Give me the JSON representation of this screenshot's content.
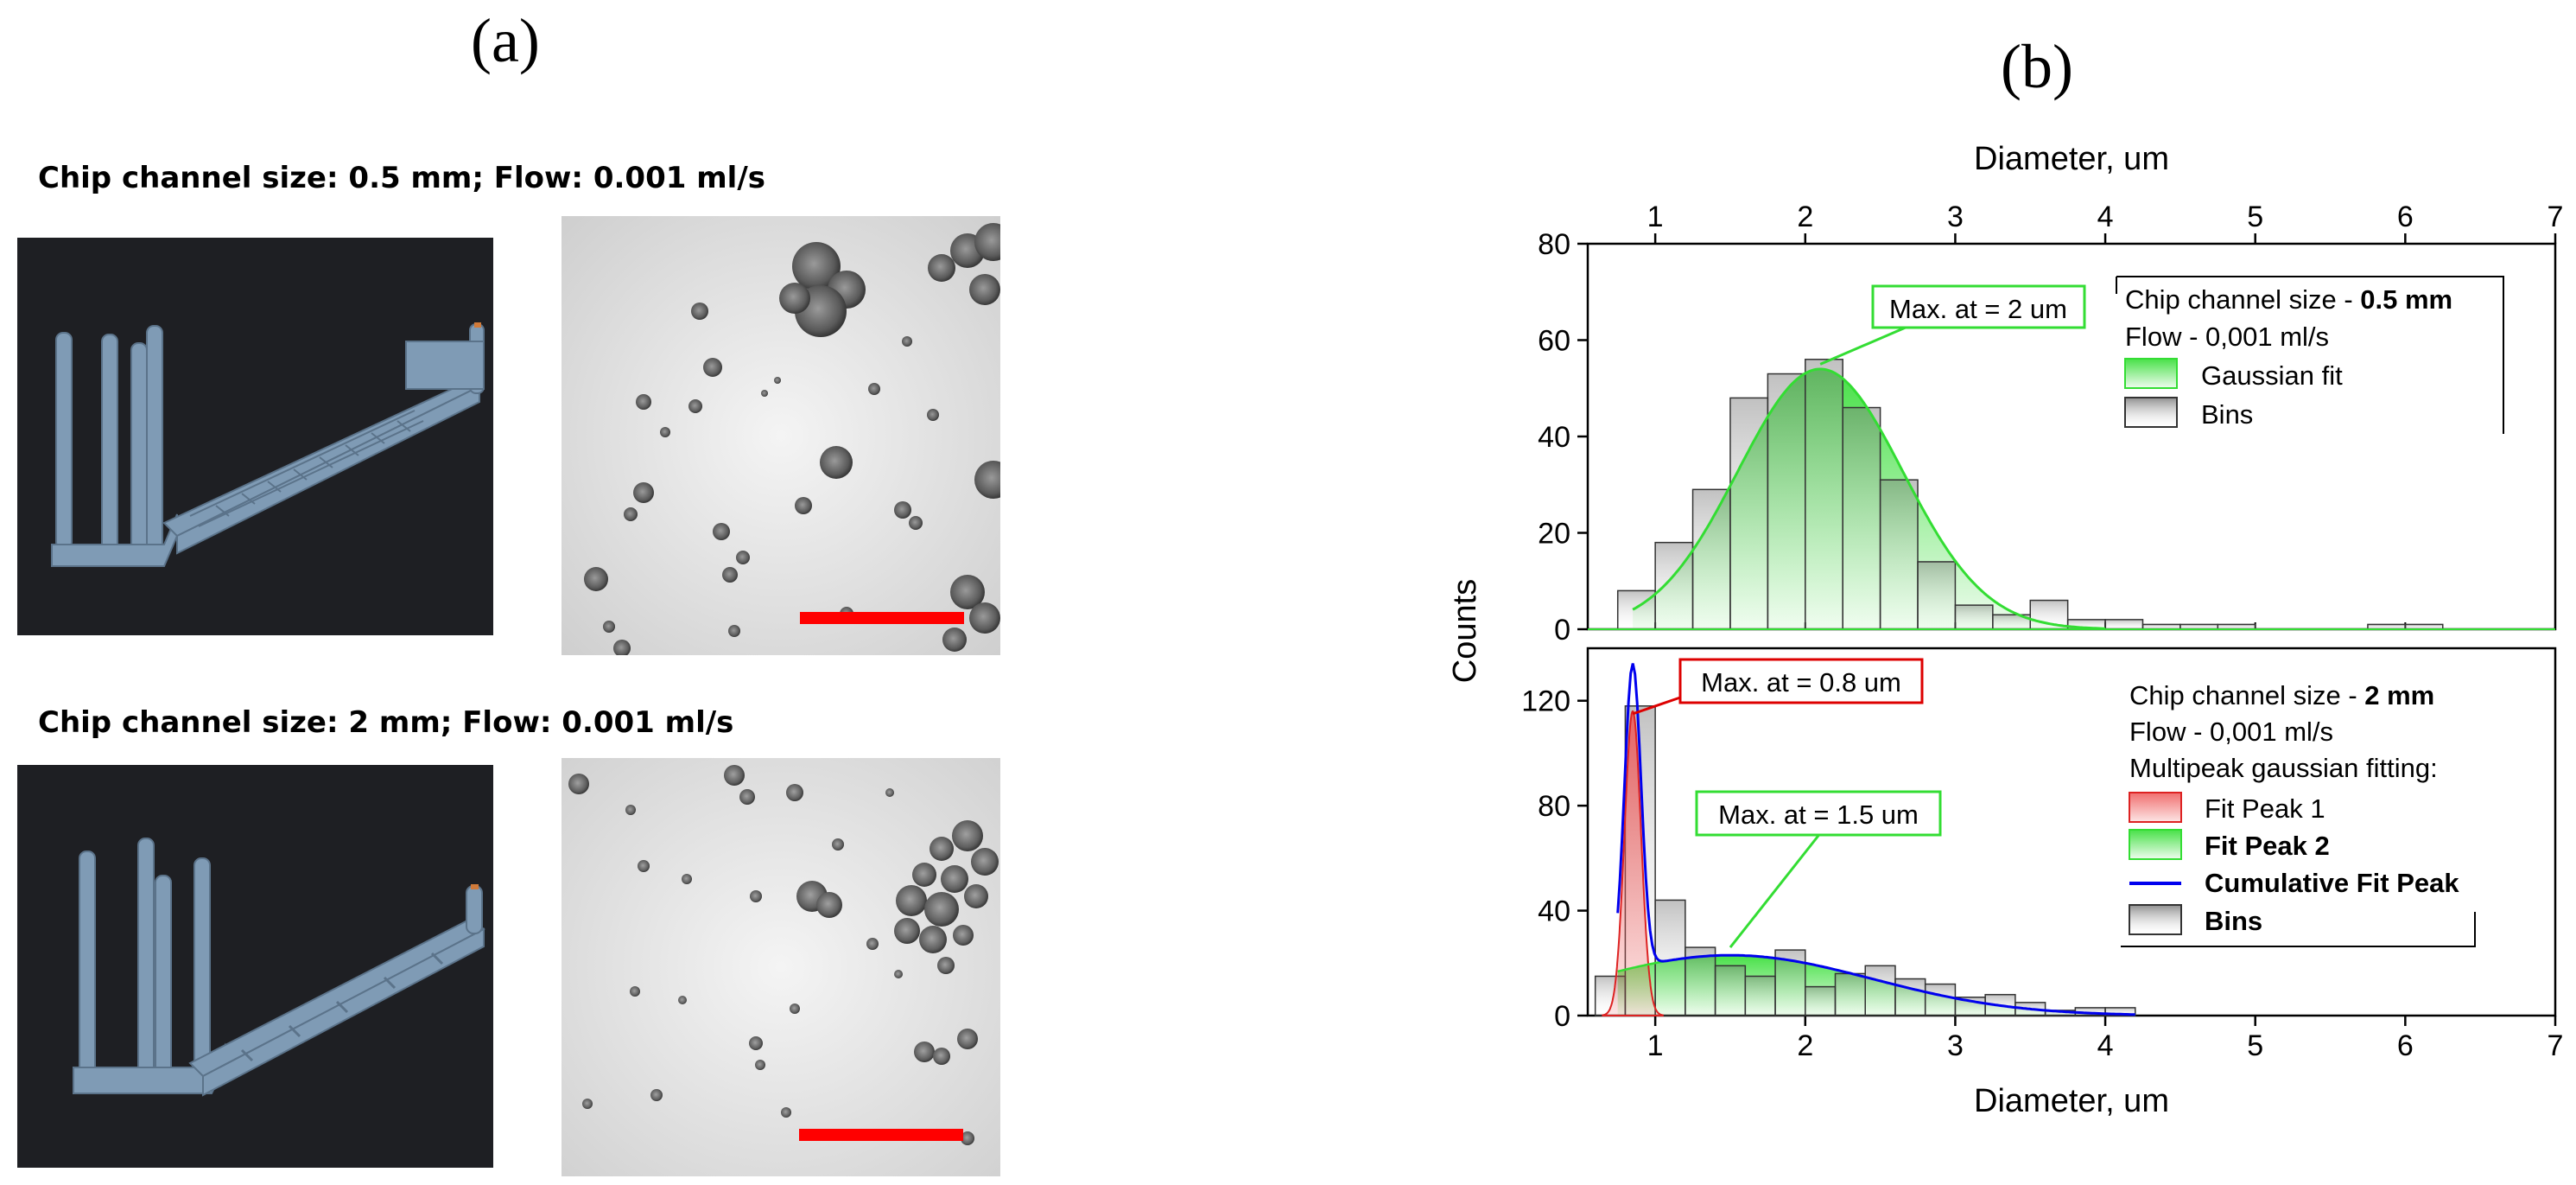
{
  "panel_a": {
    "label": "(a)",
    "top_caption": "Chip channel size: 0.5 mm; Flow: 0.001 ml/s",
    "bottom_caption": "Chip channel size: 2 mm; Flow: 0.001 ml/s",
    "colors": {
      "render_bg": "#1e1f23",
      "chip": "#7f9bb5",
      "scale_bar": "#ff0000"
    }
  },
  "panel_b": {
    "label": "(b)"
  },
  "chart_data": {
    "type": "bar",
    "x_label_top": "Diameter, um",
    "x_label_bottom": "Diameter, um",
    "y_label": "Counts",
    "xlim": [
      0.55,
      7
    ],
    "x_ticks": [
      1,
      2,
      3,
      4,
      5,
      6,
      7
    ],
    "panels": [
      {
        "ylim": [
          0,
          80
        ],
        "y_ticks": [
          0,
          20,
          40,
          60,
          80
        ],
        "bin_width": 0.25,
        "bins": {
          "x_start": [
            0.75,
            1.0,
            1.25,
            1.5,
            1.75,
            2.0,
            2.25,
            2.5,
            2.75,
            3.0,
            3.25,
            3.5,
            3.75,
            4.0,
            4.25,
            4.5,
            4.75,
            5.0,
            5.25,
            5.5,
            5.75,
            6.0,
            6.25,
            6.5,
            6.75
          ],
          "counts": [
            8,
            18,
            29,
            48,
            53,
            56,
            46,
            31,
            14,
            5,
            3,
            6,
            2,
            2,
            1,
            1,
            1,
            0,
            0,
            0,
            1,
            1,
            0,
            0,
            0
          ]
        },
        "gaussian_fit": {
          "center": 2.1,
          "amplitude": 54,
          "sigma": 0.55,
          "x_range": [
            0.85,
            4.0
          ]
        },
        "annotations": [
          {
            "text": "Max. at = 2 um",
            "x": 2.1,
            "y": 55,
            "color": "#33dd33"
          }
        ],
        "legend": {
          "position": "top-right",
          "line1_prefix": "Chip channel size - ",
          "line1_bold": "0.5 mm",
          "line2": "Flow - 0,001 ml/s",
          "entries": [
            "Gaussian fit",
            "Bins"
          ]
        }
      },
      {
        "ylim": [
          0,
          140
        ],
        "y_ticks": [
          0,
          40,
          80,
          120
        ],
        "bin_width": 0.2,
        "bins": {
          "x_start": [
            0.6,
            0.8,
            1.0,
            1.2,
            1.4,
            1.6,
            1.8,
            2.0,
            2.2,
            2.4,
            2.6,
            2.8,
            3.0,
            3.2,
            3.4,
            3.6,
            3.8,
            4.0
          ],
          "counts": [
            15,
            118,
            44,
            26,
            19,
            15,
            25,
            11,
            16,
            19,
            14,
            12,
            7,
            8,
            5,
            2,
            3,
            3
          ]
        },
        "fit_peak_1": {
          "center": 0.85,
          "amplitude": 116,
          "sigma": 0.055
        },
        "fit_peak_2": {
          "center": 1.5,
          "amplitude": 23,
          "sigma": 0.95
        },
        "fit_x_range": [
          0.75,
          4.2
        ],
        "annotations": [
          {
            "text": "Max. at = 0.8 um",
            "x": 0.85,
            "y": 115,
            "color": "#dd0000"
          },
          {
            "text": "Max. at = 1.5 um",
            "x": 1.5,
            "y": 26,
            "color": "#33dd33"
          }
        ],
        "legend": {
          "position": "top-right",
          "line1_prefix": "Chip channel size - ",
          "line1_bold": "2 mm",
          "line2": "Flow - 0,001 ml/s",
          "line3": "Multipeak gaussian fitting:",
          "entries": [
            "Fit Peak 1",
            "Fit Peak 2",
            "Cumulative Fit Peak",
            "Bins"
          ]
        }
      }
    ],
    "colors": {
      "gauss_green": "#33dd33",
      "peak1_red": "#dd2222",
      "cumulative_blue": "#0000ee",
      "bins_gray": "#8c8c8c"
    }
  }
}
